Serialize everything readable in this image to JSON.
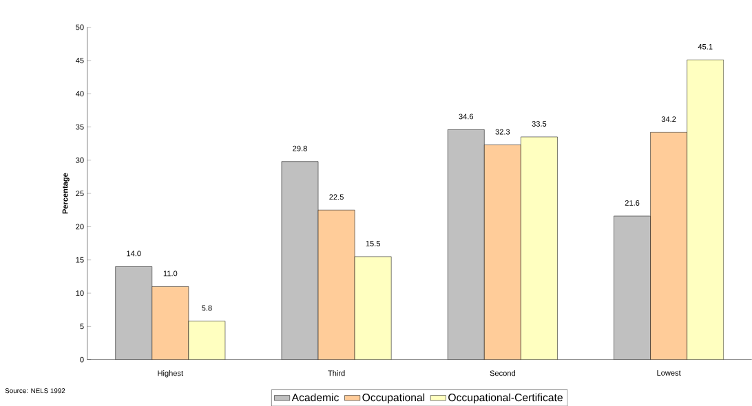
{
  "chart_data": {
    "type": "bar",
    "ylabel": "Percentage",
    "categories": [
      "Highest",
      "Third",
      "Second",
      "Lowest"
    ],
    "series": [
      {
        "name": "Academic",
        "color": "#c0c0c0",
        "values": [
          14.0,
          29.8,
          34.6,
          21.6
        ],
        "value_labels": [
          "14.0",
          "29.8",
          "34.6",
          "21.6"
        ]
      },
      {
        "name": "Occupational",
        "color": "#ffcc99",
        "values": [
          11.0,
          22.5,
          32.3,
          34.2
        ],
        "value_labels": [
          "11.0",
          "22.5",
          "32.3",
          "34.2"
        ]
      },
      {
        "name": "Occupational-Certificate",
        "color": "#ffffc0",
        "values": [
          5.8,
          15.5,
          33.5,
          45.1
        ],
        "value_labels": [
          "5.8",
          "15.5",
          "33.5",
          "45.1"
        ]
      }
    ],
    "ylim": [
      0,
      50
    ],
    "yticks": [
      0,
      5,
      10,
      15,
      20,
      25,
      30,
      35,
      40,
      45,
      50
    ],
    "legend": "bottom",
    "grid": false,
    "annotations": [
      "Source:  NELS 1992"
    ]
  }
}
